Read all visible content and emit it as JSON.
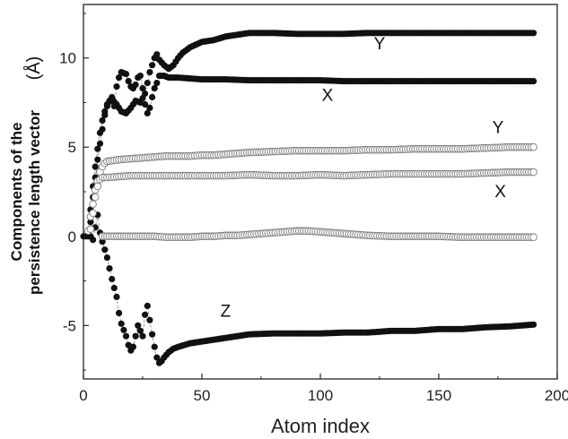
{
  "chart_data": {
    "type": "scatter",
    "title": "",
    "xlabel": "Atom index",
    "ylabel_line1": "Components of the",
    "ylabel_line2": "persistence length vector",
    "ylabel_unit": "(Å)",
    "xlim": [
      0,
      200
    ],
    "ylim": [
      -8,
      13
    ],
    "xticks": [
      0,
      50,
      100,
      150,
      200
    ],
    "yticks": [
      -5,
      0,
      5,
      10
    ],
    "grid": false,
    "legend": "none",
    "colors": {
      "filled": "#111111",
      "open_stroke": "#7a7a7a",
      "open_fill": "#ffffff",
      "axis": "#222222"
    },
    "series": [
      {
        "marker": "filled-circle",
        "label": "Y",
        "label_pos": {
          "x": 125,
          "y": 10.5
        },
        "points": [
          [
            2,
            0.2
          ],
          [
            3,
            1.5
          ],
          [
            4,
            2.8
          ],
          [
            5,
            3.9
          ],
          [
            6,
            4.9
          ],
          [
            7,
            5.8
          ],
          [
            8,
            6.5
          ],
          [
            9,
            7.0
          ],
          [
            10,
            7.4
          ],
          [
            12,
            7.7
          ],
          [
            14,
            7.4
          ],
          [
            16,
            7.0
          ],
          [
            18,
            6.9
          ],
          [
            20,
            7.2
          ],
          [
            22,
            7.6
          ],
          [
            24,
            7.5
          ],
          [
            26,
            8.0
          ],
          [
            28,
            9.2
          ],
          [
            30,
            10.0
          ],
          [
            31,
            10.2
          ],
          [
            32,
            9.9
          ],
          [
            34,
            9.6
          ],
          [
            36,
            9.4
          ],
          [
            38,
            9.6
          ],
          [
            40,
            10.0
          ],
          [
            42,
            10.3
          ],
          [
            45,
            10.6
          ],
          [
            50,
            10.9
          ],
          [
            55,
            11.0
          ],
          [
            60,
            11.2
          ],
          [
            65,
            11.3
          ],
          [
            70,
            11.4
          ],
          [
            75,
            11.4
          ],
          [
            80,
            11.4
          ],
          [
            90,
            11.35
          ],
          [
            100,
            11.35
          ],
          [
            110,
            11.35
          ],
          [
            120,
            11.4
          ],
          [
            130,
            11.4
          ],
          [
            140,
            11.4
          ],
          [
            150,
            11.4
          ],
          [
            160,
            11.4
          ],
          [
            170,
            11.4
          ],
          [
            180,
            11.4
          ],
          [
            190,
            11.4
          ]
        ]
      },
      {
        "marker": "filled-circle",
        "label": "X",
        "label_pos": {
          "x": 103,
          "y": 7.6
        },
        "points": [
          [
            3,
            0.8
          ],
          [
            4,
            2.2
          ],
          [
            5,
            3.3
          ],
          [
            6,
            4.3
          ],
          [
            7,
            5.2
          ],
          [
            8,
            6.0
          ],
          [
            9,
            6.8
          ],
          [
            10,
            7.3
          ],
          [
            11,
            7.6
          ],
          [
            12,
            7.8
          ],
          [
            13,
            7.3
          ],
          [
            14,
            8.4
          ],
          [
            15,
            8.9
          ],
          [
            16,
            9.2
          ],
          [
            18,
            9.1
          ],
          [
            19,
            8.7
          ],
          [
            20,
            8.4
          ],
          [
            21,
            8.3
          ],
          [
            22,
            8.5
          ],
          [
            23,
            8.9
          ],
          [
            24,
            9.0
          ],
          [
            25,
            8.3
          ],
          [
            26,
            7.4
          ],
          [
            27,
            6.9
          ],
          [
            28,
            7.2
          ],
          [
            29,
            7.8
          ],
          [
            30,
            8.3
          ],
          [
            31,
            8.6
          ],
          [
            32,
            9.0
          ],
          [
            34,
            9.0
          ],
          [
            36,
            8.9
          ],
          [
            40,
            8.9
          ],
          [
            45,
            8.85
          ],
          [
            50,
            8.8
          ],
          [
            55,
            8.8
          ],
          [
            60,
            8.8
          ],
          [
            70,
            8.75
          ],
          [
            80,
            8.75
          ],
          [
            90,
            8.75
          ],
          [
            100,
            8.75
          ],
          [
            110,
            8.7
          ],
          [
            120,
            8.7
          ],
          [
            130,
            8.7
          ],
          [
            140,
            8.7
          ],
          [
            150,
            8.7
          ],
          [
            160,
            8.7
          ],
          [
            170,
            8.7
          ],
          [
            180,
            8.7
          ],
          [
            190,
            8.7
          ]
        ]
      },
      {
        "marker": "filled-circle",
        "label": "Z",
        "label_pos": {
          "x": 60,
          "y": -4.5
        },
        "points": [
          [
            0,
            0
          ],
          [
            1,
            0
          ],
          [
            2,
            0
          ],
          [
            3,
            0
          ],
          [
            4,
            -0.2
          ],
          [
            5,
            0.5
          ],
          [
            6,
            1.2
          ],
          [
            7,
            0.2
          ],
          [
            8,
            -0.3
          ],
          [
            10,
            -1.2
          ],
          [
            12,
            -2.4
          ],
          [
            14,
            -3.4
          ],
          [
            15,
            -4.3
          ],
          [
            16,
            -4.9
          ],
          [
            18,
            -5.6
          ],
          [
            19,
            -6.1
          ],
          [
            20,
            -6.4
          ],
          [
            21,
            -6.2
          ],
          [
            22,
            -5.6
          ],
          [
            23,
            -5.0
          ],
          [
            24,
            -5.3
          ],
          [
            25,
            -5.6
          ],
          [
            26,
            -4.4
          ],
          [
            27,
            -3.9
          ],
          [
            28,
            -4.7
          ],
          [
            29,
            -5.5
          ],
          [
            30,
            -6.2
          ],
          [
            31,
            -6.8
          ],
          [
            32,
            -7.1
          ],
          [
            33,
            -7.0
          ],
          [
            34,
            -6.8
          ],
          [
            36,
            -6.5
          ],
          [
            38,
            -6.3
          ],
          [
            40,
            -6.2
          ],
          [
            45,
            -6.0
          ],
          [
            50,
            -5.9
          ],
          [
            55,
            -5.8
          ],
          [
            60,
            -5.7
          ],
          [
            70,
            -5.5
          ],
          [
            80,
            -5.45
          ],
          [
            90,
            -5.45
          ],
          [
            100,
            -5.45
          ],
          [
            110,
            -5.4
          ],
          [
            120,
            -5.4
          ],
          [
            130,
            -5.3
          ],
          [
            140,
            -5.3
          ],
          [
            150,
            -5.2
          ],
          [
            160,
            -5.2
          ],
          [
            170,
            -5.1
          ],
          [
            180,
            -5.05
          ],
          [
            190,
            -4.95
          ]
        ]
      },
      {
        "marker": "open-circle",
        "label": "Y",
        "label_pos": {
          "x": 175,
          "y": 5.8
        },
        "points": [
          [
            2,
            0.3
          ],
          [
            3,
            1.1
          ],
          [
            4,
            1.8
          ],
          [
            5,
            2.6
          ],
          [
            6,
            3.1
          ],
          [
            7,
            3.6
          ],
          [
            8,
            3.9
          ],
          [
            9,
            4.1
          ],
          [
            10,
            4.2
          ],
          [
            15,
            4.3
          ],
          [
            20,
            4.35
          ],
          [
            25,
            4.4
          ],
          [
            30,
            4.45
          ],
          [
            35,
            4.5
          ],
          [
            40,
            4.5
          ],
          [
            45,
            4.5
          ],
          [
            50,
            4.55
          ],
          [
            55,
            4.55
          ],
          [
            60,
            4.6
          ],
          [
            70,
            4.7
          ],
          [
            80,
            4.75
          ],
          [
            90,
            4.8
          ],
          [
            100,
            4.8
          ],
          [
            110,
            4.8
          ],
          [
            120,
            4.85
          ],
          [
            130,
            4.85
          ],
          [
            140,
            4.9
          ],
          [
            150,
            4.9
          ],
          [
            160,
            4.9
          ],
          [
            170,
            4.95
          ],
          [
            180,
            5.0
          ],
          [
            190,
            5.0
          ]
        ]
      },
      {
        "marker": "open-circle",
        "label": "X",
        "label_pos": {
          "x": 176,
          "y": 2.2
        },
        "points": [
          [
            3,
            0.4
          ],
          [
            4,
            1.3
          ],
          [
            5,
            2.2
          ],
          [
            6,
            2.8
          ],
          [
            7,
            3.2
          ],
          [
            8,
            3.3
          ],
          [
            10,
            3.3
          ],
          [
            15,
            3.35
          ],
          [
            20,
            3.4
          ],
          [
            25,
            3.4
          ],
          [
            30,
            3.4
          ],
          [
            40,
            3.4
          ],
          [
            50,
            3.4
          ],
          [
            60,
            3.4
          ],
          [
            70,
            3.45
          ],
          [
            80,
            3.4
          ],
          [
            90,
            3.4
          ],
          [
            100,
            3.45
          ],
          [
            110,
            3.4
          ],
          [
            120,
            3.45
          ],
          [
            130,
            3.5
          ],
          [
            140,
            3.5
          ],
          [
            150,
            3.5
          ],
          [
            160,
            3.5
          ],
          [
            170,
            3.55
          ],
          [
            180,
            3.6
          ],
          [
            190,
            3.6
          ]
        ]
      },
      {
        "marker": "open-circle",
        "label": "",
        "points": [
          [
            8,
            0
          ],
          [
            10,
            0
          ],
          [
            15,
            0
          ],
          [
            20,
            0
          ],
          [
            25,
            0
          ],
          [
            30,
            0
          ],
          [
            35,
            -0.05
          ],
          [
            40,
            -0.05
          ],
          [
            45,
            -0.05
          ],
          [
            50,
            0
          ],
          [
            55,
            0
          ],
          [
            60,
            0.05
          ],
          [
            65,
            0.05
          ],
          [
            70,
            0.1
          ],
          [
            75,
            0.15
          ],
          [
            80,
            0.2
          ],
          [
            85,
            0.25
          ],
          [
            90,
            0.3
          ],
          [
            95,
            0.3
          ],
          [
            100,
            0.25
          ],
          [
            105,
            0.2
          ],
          [
            110,
            0.15
          ],
          [
            115,
            0.1
          ],
          [
            120,
            0.05
          ],
          [
            130,
            0
          ],
          [
            140,
            0
          ],
          [
            150,
            0
          ],
          [
            160,
            -0.05
          ],
          [
            170,
            -0.05
          ],
          [
            180,
            -0.05
          ],
          [
            190,
            -0.05
          ]
        ]
      }
    ]
  }
}
